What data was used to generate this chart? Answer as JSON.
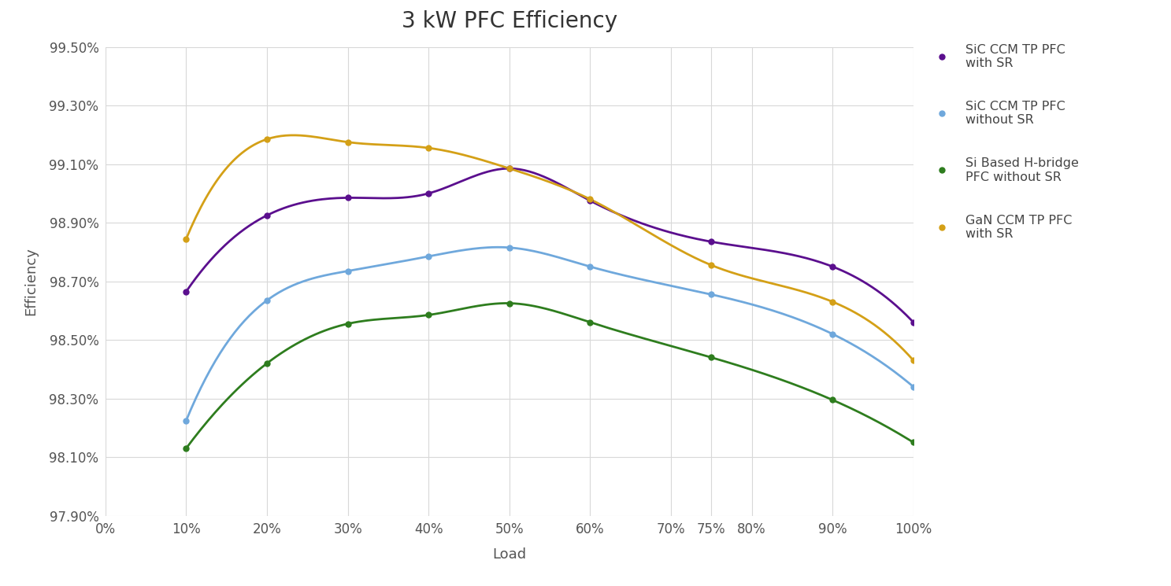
{
  "title": "3 kW PFC Efficiency",
  "xlabel": "Load",
  "ylabel": "Efficiency",
  "fig_background_color": "#ffffff",
  "plot_background_color": "#ffffff",
  "grid_color": "#d8d8d8",
  "x_ticks": [
    0,
    10,
    20,
    30,
    40,
    50,
    60,
    70,
    75,
    80,
    90,
    100
  ],
  "x_tick_labels": [
    "0%",
    "10%",
    "20%",
    "30%",
    "40%",
    "50%",
    "60%",
    "70%",
    "75%",
    "80%",
    "90%",
    "100%"
  ],
  "ylim": [
    97.9,
    99.5
  ],
  "y_ticks": [
    97.9,
    98.1,
    98.3,
    98.5,
    98.7,
    98.9,
    99.1,
    99.3,
    99.5
  ],
  "y_tick_labels": [
    "97.90%",
    "98.10%",
    "98.30%",
    "98.50%",
    "98.70%",
    "98.90%",
    "99.10%",
    "99.30%",
    "99.50%"
  ],
  "series": [
    {
      "label": "SiC CCM TP PFC\nwith SR",
      "color": "#5b0f8e",
      "x": [
        10,
        20,
        30,
        40,
        50,
        60,
        75,
        90,
        100
      ],
      "y": [
        98.665,
        98.925,
        98.985,
        99.0,
        99.085,
        98.975,
        98.835,
        98.75,
        98.56
      ]
    },
    {
      "label": "SiC CCM TP PFC\nwithout SR",
      "color": "#6fa8dc",
      "x": [
        10,
        20,
        30,
        40,
        50,
        60,
        75,
        90,
        100
      ],
      "y": [
        98.225,
        98.635,
        98.735,
        98.785,
        98.815,
        98.75,
        98.655,
        98.52,
        98.34
      ]
    },
    {
      "label": "Si Based H-bridge\nPFC without SR",
      "color": "#2e7d1e",
      "x": [
        10,
        20,
        30,
        40,
        50,
        60,
        75,
        90,
        100
      ],
      "y": [
        98.13,
        98.42,
        98.555,
        98.585,
        98.625,
        98.56,
        98.44,
        98.295,
        98.15
      ]
    },
    {
      "label": "GaN CCM TP PFC\nwith SR",
      "color": "#d4a017",
      "x": [
        10,
        20,
        30,
        40,
        50,
        60,
        75,
        90,
        100
      ],
      "y": [
        98.845,
        99.185,
        99.175,
        99.155,
        99.085,
        98.98,
        98.755,
        98.63,
        98.43
      ]
    }
  ]
}
